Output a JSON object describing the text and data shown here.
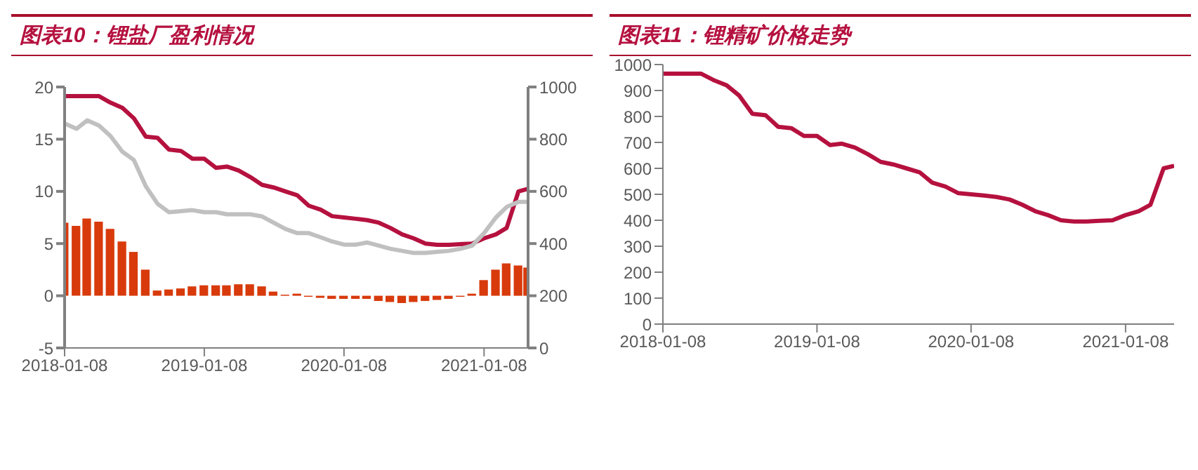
{
  "chart_data": [
    {
      "type": "bar",
      "title": "图表10：锂盐厂盈利情况",
      "x": [
        "2018-01-08",
        "2018-02-08",
        "2018-03-08",
        "2018-04-08",
        "2018-05-08",
        "2018-06-08",
        "2018-07-08",
        "2018-08-08",
        "2018-09-08",
        "2018-10-08",
        "2018-11-08",
        "2018-12-08",
        "2019-01-08",
        "2019-02-08",
        "2019-03-08",
        "2019-04-08",
        "2019-05-08",
        "2019-06-08",
        "2019-07-08",
        "2019-08-08",
        "2019-09-08",
        "2019-10-08",
        "2019-11-08",
        "2019-12-08",
        "2020-01-08",
        "2020-02-08",
        "2020-03-08",
        "2020-04-08",
        "2020-05-08",
        "2020-06-08",
        "2020-07-08",
        "2020-08-08",
        "2020-09-08",
        "2020-10-08",
        "2020-11-08",
        "2020-12-08",
        "2021-01-08",
        "2021-02-08",
        "2021-03-08",
        "2021-04-08",
        "2021-05-03"
      ],
      "series": [
        {
          "color": "#d83a0c",
          "values": [
            7.0,
            6.7,
            7.4,
            7.1,
            6.4,
            5.2,
            4.2,
            2.5,
            0.5,
            0.6,
            0.7,
            0.9,
            1.0,
            1.0,
            1.0,
            1.1,
            1.1,
            0.9,
            0.4,
            0.1,
            0.2,
            -0.1,
            -0.2,
            -0.3,
            -0.3,
            -0.3,
            -0.3,
            -0.5,
            -0.6,
            -0.7,
            -0.6,
            -0.5,
            -0.4,
            -0.3,
            -0.1,
            0.2,
            1.5,
            2.5,
            3.1,
            2.9,
            2.7
          ]
        },
        {
          "type": "line",
          "axis": "y2",
          "color": "#b5113f",
          "values": [
            965,
            965,
            965,
            965,
            940,
            920,
            880,
            810,
            805,
            760,
            755,
            725,
            725,
            690,
            695,
            680,
            655,
            625,
            615,
            600,
            585,
            545,
            530,
            505,
            500,
            495,
            490,
            480,
            460,
            435,
            420,
            400,
            395,
            395,
            398,
            400,
            420,
            435,
            460,
            600,
            610
          ]
        },
        {
          "type": "line",
          "color": "#c0c0c0",
          "values": [
            16.5,
            16.0,
            16.8,
            16.3,
            15.3,
            13.8,
            13.0,
            10.5,
            8.8,
            8.0,
            8.1,
            8.2,
            8.0,
            8.0,
            7.8,
            7.8,
            7.8,
            7.6,
            7.0,
            6.4,
            6.0,
            6.0,
            5.6,
            5.2,
            4.9,
            4.9,
            5.1,
            4.8,
            4.5,
            4.3,
            4.1,
            4.1,
            4.2,
            4.3,
            4.5,
            4.8,
            6.0,
            7.5,
            8.5,
            9.0,
            9.0
          ]
        }
      ],
      "xlim": [
        "2018-01-08",
        "2021-05-03"
      ],
      "xticks": [
        {
          "value": "2018-01-08",
          "label": "2018-01-08"
        },
        {
          "value": "2019-01-08",
          "label": "2019-01-08"
        },
        {
          "value": "2020-01-08",
          "label": "2020-01-08"
        },
        {
          "value": "2021-01-08",
          "label": "2021-01-08"
        }
      ],
      "ylim": [
        -5,
        20
      ],
      "yticks": [
        -5,
        0,
        5,
        10,
        15,
        20
      ],
      "y2lim": [
        0,
        1000
      ],
      "y2ticks": [
        0,
        200,
        400,
        600,
        800,
        1000
      ]
    },
    {
      "type": "line",
      "title": "图表11：锂精矿价格走势",
      "x": [
        "2018-01-08",
        "2018-02-08",
        "2018-03-08",
        "2018-04-08",
        "2018-05-08",
        "2018-06-08",
        "2018-07-08",
        "2018-08-08",
        "2018-09-08",
        "2018-10-08",
        "2018-11-08",
        "2018-12-08",
        "2019-01-08",
        "2019-02-08",
        "2019-03-08",
        "2019-04-08",
        "2019-05-08",
        "2019-06-08",
        "2019-07-08",
        "2019-08-08",
        "2019-09-08",
        "2019-10-08",
        "2019-11-08",
        "2019-12-08",
        "2020-01-08",
        "2020-02-08",
        "2020-03-08",
        "2020-04-08",
        "2020-05-08",
        "2020-06-08",
        "2020-07-08",
        "2020-08-08",
        "2020-09-08",
        "2020-10-08",
        "2020-11-08",
        "2020-12-08",
        "2021-01-08",
        "2021-02-08",
        "2021-03-08",
        "2021-04-08",
        "2021-05-03"
      ],
      "series": [
        {
          "color": "#b5113f",
          "values": [
            965,
            965,
            965,
            965,
            940,
            920,
            880,
            810,
            805,
            760,
            755,
            725,
            725,
            690,
            695,
            680,
            655,
            625,
            615,
            600,
            585,
            545,
            530,
            505,
            500,
            495,
            490,
            480,
            460,
            435,
            420,
            400,
            395,
            395,
            398,
            400,
            420,
            435,
            460,
            600,
            610
          ]
        }
      ],
      "xlim": [
        "2018-01-08",
        "2021-05-03"
      ],
      "xticks": [
        {
          "value": "2018-01-08",
          "label": "2018-01-08"
        },
        {
          "value": "2019-01-08",
          "label": "2019-01-08"
        },
        {
          "value": "2020-01-08",
          "label": "2020-01-08"
        },
        {
          "value": "2021-01-08",
          "label": "2021-01-08"
        }
      ],
      "ylim": [
        0,
        1000
      ],
      "yticks": [
        0,
        100,
        200,
        300,
        400,
        500,
        600,
        700,
        800,
        900,
        1000
      ]
    }
  ]
}
